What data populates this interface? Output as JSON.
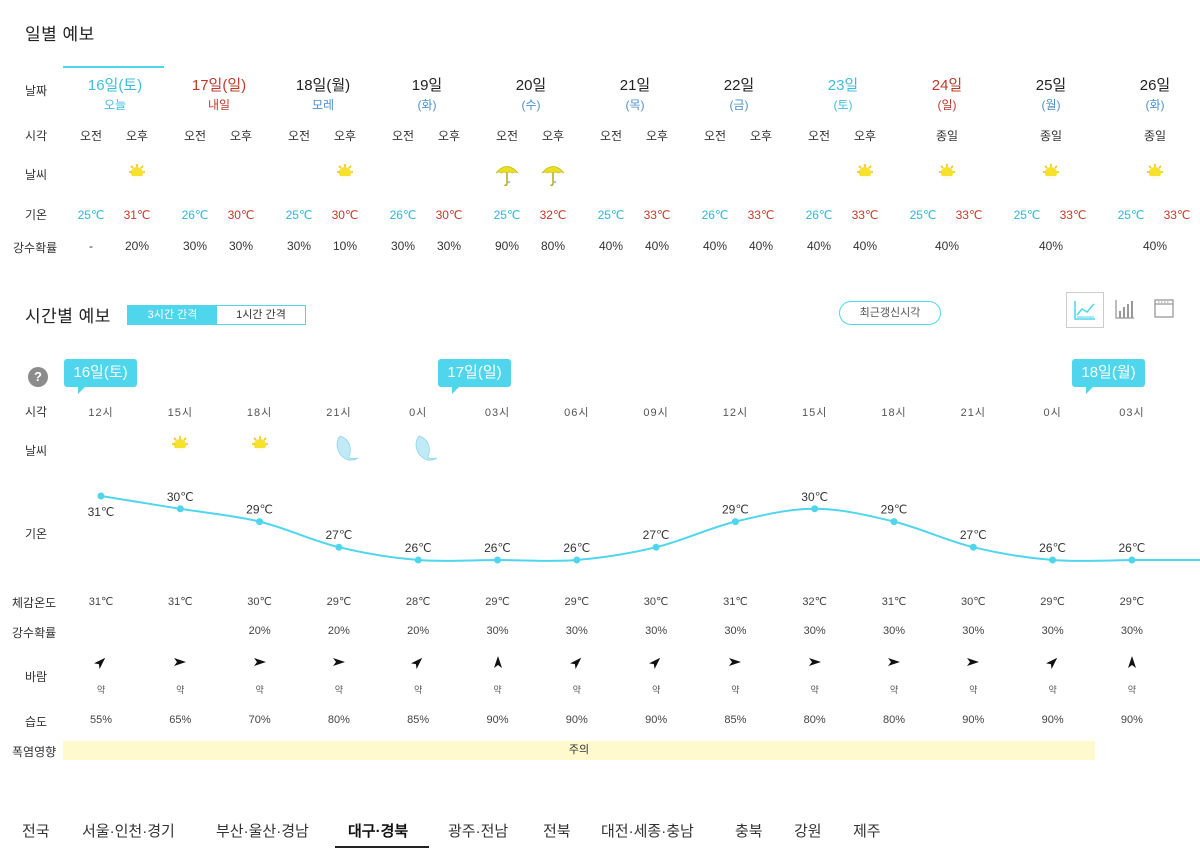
{
  "daily": {
    "title": "일별 예보",
    "labels": {
      "date": "날짜",
      "time": "시각",
      "weather": "날씨",
      "temp": "기온",
      "prob": "강수확률"
    },
    "days": [
      {
        "date": "16일(토)",
        "sub": "오늘",
        "date_color": "#3bbfd9",
        "sub_color": "#3bbfd9",
        "ampm": [
          "오전",
          "오후"
        ],
        "icons": [
          "none",
          "sun"
        ],
        "low": "25℃",
        "high": "31℃",
        "prob": [
          "-",
          "20%"
        ]
      },
      {
        "date": "17일(일)",
        "sub": "내일",
        "date_color": "#c0392b",
        "sub_color": "#c0392b",
        "ampm": [
          "오전",
          "오후"
        ],
        "icons": [
          "none",
          "none"
        ],
        "low": "26℃",
        "high": "30℃",
        "prob": [
          "30%",
          "30%"
        ]
      },
      {
        "date": "18일(월)",
        "sub": "모레",
        "date_color": "#222222",
        "sub_color": "#4a90c8",
        "ampm": [
          "오전",
          "오후"
        ],
        "icons": [
          "none",
          "sun"
        ],
        "low": "25℃",
        "high": "30℃",
        "prob": [
          "30%",
          "10%"
        ]
      },
      {
        "date": "19일",
        "sub": "(화)",
        "date_color": "#222222",
        "sub_color": "#4a90c8",
        "ampm": [
          "오전",
          "오후"
        ],
        "icons": [
          "none",
          "none"
        ],
        "low": "26℃",
        "high": "30℃",
        "prob": [
          "30%",
          "30%"
        ]
      },
      {
        "date": "20일",
        "sub": "(수)",
        "date_color": "#222222",
        "sub_color": "#4a90c8",
        "ampm": [
          "오전",
          "오후"
        ],
        "icons": [
          "umbrella",
          "umbrella"
        ],
        "low": "25℃",
        "high": "32℃",
        "prob": [
          "90%",
          "80%"
        ]
      },
      {
        "date": "21일",
        "sub": "(목)",
        "date_color": "#222222",
        "sub_color": "#4a90c8",
        "ampm": [
          "오전",
          "오후"
        ],
        "icons": [
          "none",
          "none"
        ],
        "low": "25℃",
        "high": "33℃",
        "prob": [
          "40%",
          "40%"
        ]
      },
      {
        "date": "22일",
        "sub": "(금)",
        "date_color": "#222222",
        "sub_color": "#4a90c8",
        "ampm": [
          "오전",
          "오후"
        ],
        "icons": [
          "none",
          "none"
        ],
        "low": "26℃",
        "high": "33℃",
        "prob": [
          "40%",
          "40%"
        ]
      },
      {
        "date": "23일",
        "sub": "(토)",
        "date_color": "#3bbfd9",
        "sub_color": "#3bbfd9",
        "ampm": [
          "오전",
          "오후"
        ],
        "icons": [
          "none",
          "sun"
        ],
        "low": "26℃",
        "high": "33℃",
        "prob": [
          "40%",
          "40%"
        ]
      },
      {
        "date": "24일",
        "sub": "(일)",
        "date_color": "#c0392b",
        "sub_color": "#c0392b",
        "ampm": [
          "종일"
        ],
        "icons": [
          "sun"
        ],
        "low": "25℃",
        "high": "33℃",
        "prob": [
          "40%"
        ]
      },
      {
        "date": "25일",
        "sub": "(월)",
        "date_color": "#222222",
        "sub_color": "#4a90c8",
        "ampm": [
          "종일"
        ],
        "icons": [
          "sun"
        ],
        "low": "25℃",
        "high": "33℃",
        "prob": [
          "40%"
        ]
      },
      {
        "date": "26일",
        "sub": "(화)",
        "date_color": "#222222",
        "sub_color": "#4a90c8",
        "ampm": [
          "종일"
        ],
        "icons": [
          "sun"
        ],
        "low": "25℃",
        "high": "33℃",
        "prob": [
          "40%"
        ]
      }
    ]
  },
  "hourly": {
    "title": "시간별 예보",
    "toggle": [
      "3시간 간격",
      "1시간 간격"
    ],
    "refresh": "최근갱신시각",
    "view_icons": [
      "line-chart-icon",
      "bar-chart-icon",
      "table-icon"
    ],
    "help": "?",
    "labels": {
      "time": "시각",
      "weather": "날씨",
      "temp": "기온",
      "feels": "체감온도",
      "prob": "강수확률",
      "wind": "바람",
      "humidity": "습도",
      "heat": "폭염영향"
    },
    "date_badges": [
      "16일(토)",
      "17일(일)",
      "18일(월)"
    ],
    "times": [
      "12시",
      "15시",
      "18시",
      "21시",
      "0시",
      "03시",
      "06시",
      "09시",
      "12시",
      "15시",
      "18시",
      "21시",
      "0시",
      "03시"
    ],
    "icons": [
      "none",
      "sun",
      "sun",
      "moon",
      "moon",
      "none",
      "none",
      "none",
      "none",
      "none",
      "none",
      "none",
      "none",
      "none"
    ],
    "feels": [
      "31℃",
      "31℃",
      "30℃",
      "29℃",
      "28℃",
      "29℃",
      "29℃",
      "30℃",
      "31℃",
      "32℃",
      "31℃",
      "30℃",
      "29℃",
      "29℃"
    ],
    "prob": [
      "",
      "",
      "20%",
      "20%",
      "20%",
      "30%",
      "30%",
      "30%",
      "30%",
      "30%",
      "30%",
      "30%",
      "30%",
      "30%"
    ],
    "wind_dir": [
      "NE",
      "E",
      "E",
      "E",
      "NE",
      "N",
      "NE",
      "NE",
      "E",
      "E",
      "E",
      "E",
      "NE",
      "N"
    ],
    "wind_speed": [
      "약",
      "약",
      "약",
      "약",
      "약",
      "약",
      "약",
      "약",
      "약",
      "약",
      "약",
      "약",
      "약",
      "약"
    ],
    "humidity": [
      "55%",
      "65%",
      "70%",
      "80%",
      "85%",
      "90%",
      "90%",
      "90%",
      "85%",
      "80%",
      "80%",
      "90%",
      "90%",
      "90%"
    ],
    "heat": "주의"
  },
  "chart_data": {
    "type": "line",
    "x": [
      "12시",
      "15시",
      "18시",
      "21시",
      "0시",
      "03시",
      "06시",
      "09시",
      "12시",
      "15시",
      "18시",
      "21시",
      "0시",
      "03시"
    ],
    "series": [
      {
        "values": [
          31,
          30,
          29,
          27,
          26,
          26,
          26,
          27,
          29,
          30,
          29,
          27,
          26,
          26
        ]
      }
    ],
    "ylim": [
      26,
      31
    ],
    "color": "#4fd6ec"
  },
  "regions": {
    "items": [
      "전국",
      "서울·인천·경기",
      "부산·울산·경남",
      "대구·경북",
      "광주·전남",
      "전북",
      "대전·세종·충남",
      "충북",
      "강원",
      "제주"
    ],
    "active": "대구·경북"
  }
}
